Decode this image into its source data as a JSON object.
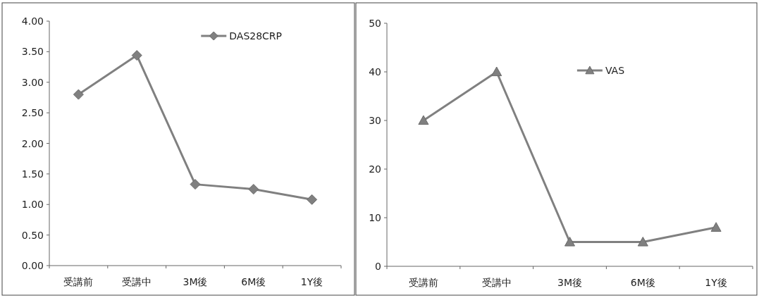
{
  "chart_data": [
    {
      "type": "line",
      "categories": [
        "受講前",
        "受講中",
        "3M後",
        "6M後",
        "1Y後"
      ],
      "ylim": [
        0,
        4
      ],
      "yticks": [
        {
          "value": 0,
          "label": "0.00"
        },
        {
          "value": 0.5,
          "label": "0.50"
        },
        {
          "value": 1,
          "label": "1.00"
        },
        {
          "value": 1.5,
          "label": "1.50"
        },
        {
          "value": 2,
          "label": "2.00"
        },
        {
          "value": 2.5,
          "label": "2.50"
        },
        {
          "value": 3,
          "label": "3.00"
        },
        {
          "value": 3.5,
          "label": "3.50"
        },
        {
          "value": 4,
          "label": "4.00"
        }
      ],
      "marker": "diamond",
      "legend": "top right",
      "grid": false,
      "series": [
        {
          "name": "DAS28CRP",
          "color": "#808080",
          "values": [
            2.8,
            3.44,
            1.33,
            1.25,
            1.08
          ]
        }
      ]
    },
    {
      "type": "line",
      "categories": [
        "受講前",
        "受講中",
        "3M後",
        "6M後",
        "1Y後"
      ],
      "ylim": [
        0,
        50
      ],
      "yticks": [
        0,
        10,
        20,
        30,
        40,
        50
      ],
      "marker": "triangle",
      "legend": "top right",
      "grid": false,
      "series": [
        {
          "name": "VAS",
          "color": "#808080",
          "values": [
            30,
            40,
            5,
            5,
            8
          ]
        }
      ]
    }
  ]
}
